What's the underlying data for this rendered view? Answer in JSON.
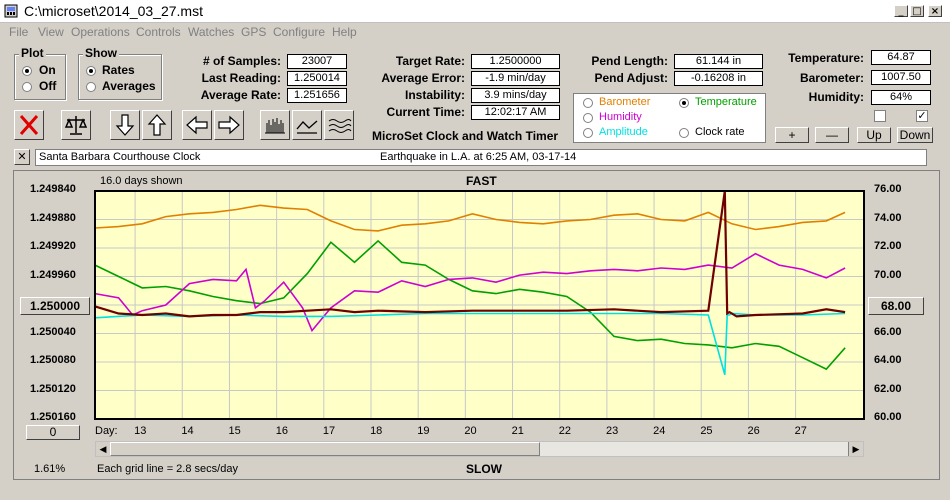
{
  "window": {
    "title": "C:\\microset\\2014_03_27.mst"
  },
  "menu": [
    "File",
    "View",
    "Operations",
    "Controls",
    "Watches",
    "GPS",
    "Configure",
    "Help"
  ],
  "plot_group": {
    "title": "Plot",
    "on_label": "On",
    "off_label": "Off",
    "selected": "On"
  },
  "show_group": {
    "title": "Show",
    "rates_label": "Rates",
    "averages_label": "Averages",
    "selected": "Rates"
  },
  "stats": {
    "samples_label": "# of Samples:",
    "samples": "23007",
    "last_label": "Last Reading:",
    "last": "1.250014",
    "avg_label": "Average Rate:",
    "avg": "1.251656"
  },
  "timing": {
    "target_label": "Target Rate:",
    "target": "1.2500000",
    "error_label": "Average Error:",
    "error": "-1.9 min/day",
    "instab_label": "Instability:",
    "instab": "3.9 mins/day",
    "time_label": "Current Time:",
    "time": "12:02:17 AM"
  },
  "pendulum": {
    "length_label": "Pend Length:",
    "length": "61.144 in",
    "adjust_label": "Pend Adjust:",
    "adjust": "-0.16208 in"
  },
  "environment": {
    "temp_label": "Temperature:",
    "temp": "64.87",
    "baro_label": "Barometer:",
    "baro": "1007.50",
    "hum_label": "Humidity:",
    "hum": "64%"
  },
  "legend": {
    "barometer": "Barometer",
    "temperature": "Temperature",
    "humidity": "Humidity",
    "amplitude": "Amplitude",
    "clock_rate": "Clock rate",
    "selected": "Temperature"
  },
  "colors": {
    "barometer": "#e08000",
    "temperature": "#00a000",
    "humidity": "#d000d0",
    "amplitude": "#00e0e0",
    "clock_rate": "#700000",
    "plot_bg": "#ffffc8"
  },
  "app_name": "MicroSet Clock and Watch Timer",
  "panel_buttons": {
    "plus": "+",
    "minus": "—",
    "up": "Up",
    "down": "Down"
  },
  "checkboxes": {
    "left": false,
    "right": true
  },
  "toolbar_icons": [
    "close-x-icon",
    "balance-scale-icon",
    "arrow-down-icon",
    "arrow-up-icon",
    "arrow-left-icon",
    "arrow-right-icon",
    "bar-graph-icon",
    "line-graph-icon",
    "wave-graph-icon"
  ],
  "notes": {
    "clock_name": "Santa Barbara Courthouse Clock",
    "note": "Earthquake in L.A. at 6:25 AM, 03-17-14",
    "close": "✕"
  },
  "chart_info": {
    "days_shown": "16.0 days shown",
    "top_label": "FAST",
    "bottom_label": "SLOW",
    "grid_note": "Each grid line = 2.8 secs/day",
    "percent": "1.61%",
    "left_button": "1.250000",
    "right_button": "68.00",
    "zero_button": "0",
    "day_label": "Day:"
  },
  "chart_data": {
    "type": "line",
    "x_label": "Day:",
    "x_ticks": [
      13,
      14,
      15,
      16,
      17,
      18,
      19,
      20,
      21,
      22,
      23,
      24,
      25,
      26,
      27
    ],
    "xlim": [
      12.0,
      28.3
    ],
    "left_axis": {
      "ticks": [
        "1.249840",
        "1.249880",
        "1.249920",
        "1.249960",
        "1.250000",
        "1.250040",
        "1.250080",
        "1.250120",
        "1.250160"
      ],
      "range": [
        1.24984,
        1.25016
      ],
      "inverted": true
    },
    "right_axis": {
      "ticks": [
        "76.00",
        "74.00",
        "72.00",
        "70.00",
        "68.00",
        "66.00",
        "64.00",
        "62.00",
        "60.00"
      ],
      "range": [
        76,
        60
      ]
    },
    "series": [
      {
        "key": "barometer",
        "x": [
          12.0,
          12.5,
          13.0,
          13.5,
          14.0,
          14.5,
          15.0,
          15.5,
          16.0,
          16.5,
          17.0,
          17.5,
          18.0,
          18.5,
          19.0,
          19.5,
          20.0,
          20.5,
          21.0,
          21.5,
          22.0,
          22.5,
          23.0,
          23.5,
          24.0,
          24.5,
          25.0,
          25.5,
          26.0,
          26.5,
          27.0,
          27.5,
          27.9
        ],
        "y": [
          73.4,
          73.5,
          73.7,
          74.2,
          74.4,
          74.5,
          74.7,
          75.0,
          74.8,
          74.7,
          73.9,
          73.3,
          73.2,
          73.6,
          73.7,
          73.9,
          74.4,
          74.0,
          73.8,
          73.7,
          73.9,
          74.0,
          74.3,
          74.4,
          74.0,
          73.9,
          74.5,
          73.7,
          73.3,
          73.5,
          73.8,
          73.9,
          74.5
        ]
      },
      {
        "key": "temperature",
        "x": [
          12.0,
          12.5,
          13.0,
          13.5,
          14.0,
          14.5,
          15.0,
          15.5,
          16.0,
          16.5,
          17.0,
          17.5,
          18.0,
          18.5,
          19.0,
          19.5,
          20.0,
          20.5,
          21.0,
          21.5,
          22.0,
          22.5,
          23.0,
          23.5,
          24.0,
          24.5,
          25.0,
          25.5,
          26.0,
          26.5,
          27.0,
          27.5,
          27.9
        ],
        "y": [
          70.8,
          70.0,
          69.2,
          69.3,
          69.0,
          68.6,
          68.3,
          68.1,
          68.5,
          70.2,
          72.4,
          71.0,
          72.5,
          71.0,
          70.8,
          69.8,
          69.0,
          68.8,
          69.1,
          68.9,
          68.6,
          67.5,
          65.8,
          65.5,
          65.6,
          65.3,
          65.2,
          65.0,
          65.3,
          65.1,
          64.3,
          63.5,
          65.0
        ]
      },
      {
        "key": "humidity",
        "x": [
          12.0,
          12.5,
          12.8,
          13.0,
          13.5,
          14.0,
          14.5,
          15.0,
          15.2,
          15.4,
          15.6,
          16.0,
          16.4,
          16.6,
          17.0,
          17.5,
          18.0,
          18.5,
          19.0,
          19.5,
          20.0,
          20.5,
          21.0,
          21.5,
          22.0,
          22.5,
          23.0,
          23.5,
          24.0,
          24.5,
          25.0,
          25.5,
          26.0,
          26.5,
          27.0,
          27.5,
          27.9
        ],
        "y": [
          68.8,
          68.5,
          67.3,
          67.6,
          68.0,
          69.5,
          69.8,
          69.7,
          70.5,
          67.8,
          68.3,
          69.6,
          67.8,
          66.2,
          67.8,
          69.0,
          68.9,
          69.7,
          69.3,
          69.8,
          69.9,
          69.6,
          70.1,
          70.3,
          70.2,
          70.4,
          70.5,
          70.4,
          70.6,
          70.5,
          70.8,
          70.6,
          71.6,
          70.8,
          70.5,
          69.9,
          70.6
        ]
      },
      {
        "key": "amplitude",
        "x": [
          12.0,
          13.0,
          14.0,
          15.0,
          16.0,
          17.0,
          18.0,
          19.0,
          20.0,
          21.0,
          22.0,
          23.0,
          24.0,
          25.0,
          25.35,
          25.4,
          25.45,
          25.5,
          26.0,
          27.0,
          27.9
        ],
        "y": [
          67.1,
          67.3,
          67.2,
          67.3,
          67.2,
          67.2,
          67.3,
          67.4,
          67.4,
          67.4,
          67.4,
          67.4,
          67.4,
          67.3,
          63.1,
          67.3,
          67.3,
          67.4,
          67.3,
          67.3,
          67.4
        ]
      },
      {
        "key": "clock_rate",
        "x": [
          12.0,
          12.5,
          13.0,
          13.5,
          14.0,
          14.5,
          15.0,
          15.5,
          16.0,
          16.5,
          17.0,
          17.5,
          18.0,
          19.0,
          20.0,
          21.0,
          22.0,
          23.0,
          24.0,
          25.0,
          25.35,
          25.4,
          25.45,
          25.6,
          26.0,
          27.0,
          27.5,
          27.9
        ],
        "y": [
          67.9,
          67.4,
          67.3,
          67.4,
          67.2,
          67.3,
          67.3,
          67.5,
          67.5,
          67.6,
          67.7,
          67.5,
          67.6,
          67.5,
          67.6,
          67.6,
          67.6,
          67.7,
          67.5,
          67.6,
          76.0,
          67.4,
          67.5,
          67.2,
          67.3,
          67.4,
          67.7,
          67.5
        ]
      }
    ]
  }
}
